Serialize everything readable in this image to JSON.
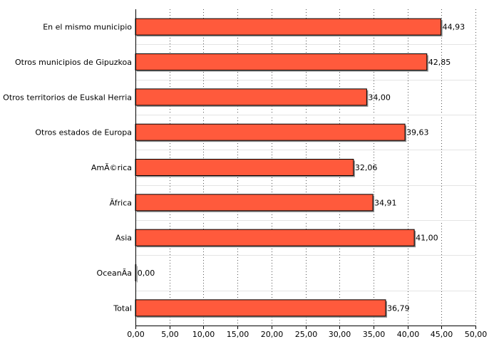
{
  "chart_data": {
    "type": "bar",
    "orientation": "horizontal",
    "categories": [
      "En el mismo municipio",
      "Otros municipios de Gipuzkoa",
      "Otros territorios de Euskal Herria",
      "Otros estados de Europa",
      "AmÃ©rica",
      "Ãfrica",
      "Asia",
      "OceanÃ­a",
      "Total"
    ],
    "values": [
      44.93,
      42.85,
      34.0,
      39.63,
      32.06,
      34.91,
      41.0,
      0.0,
      36.79
    ],
    "value_labels": [
      "44,93",
      "42,85",
      "34,00",
      "39,63",
      "32,06",
      "34,91",
      "41,00",
      "0,00",
      "36,79"
    ],
    "xticks": [
      "0,00",
      "5,00",
      "10,00",
      "15,00",
      "20,00",
      "25,00",
      "30,00",
      "35,00",
      "40,00",
      "45,00",
      "50,00"
    ],
    "xlim": [
      0,
      50
    ],
    "grid": true,
    "legend": "none",
    "bar_color": "#ff5a3c",
    "bar_stroke": "#000000",
    "grid_color": "#555555"
  }
}
